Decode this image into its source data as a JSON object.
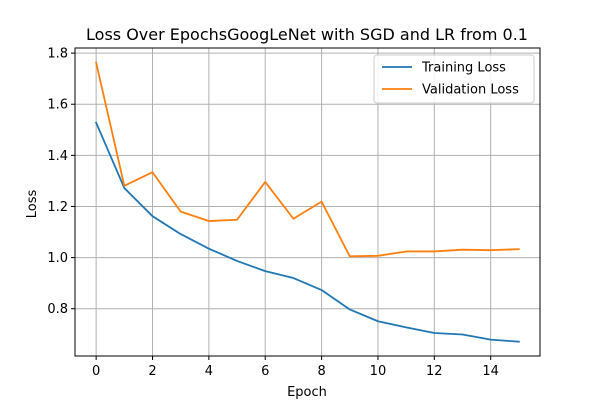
{
  "chart_data": {
    "type": "line",
    "title": "Loss Over EpochsGoogLeNet with SGD and LR from 0.1",
    "xlabel": "Epoch",
    "ylabel": "Loss",
    "x": [
      0,
      1,
      2,
      3,
      4,
      5,
      6,
      7,
      8,
      9,
      10,
      11,
      12,
      13,
      14,
      15
    ],
    "xlim": [
      -0.75,
      15.75
    ],
    "ylim": [
      0.615,
      1.82
    ],
    "xticks": [
      0,
      2,
      4,
      6,
      8,
      10,
      12,
      14
    ],
    "yticks": [
      0.8,
      1.0,
      1.2,
      1.4,
      1.6,
      1.8
    ],
    "xtick_labels": [
      "0",
      "2",
      "4",
      "6",
      "8",
      "10",
      "12",
      "14"
    ],
    "ytick_labels": [
      "0.8",
      "1.0",
      "1.2",
      "1.4",
      "1.6",
      "1.8"
    ],
    "grid": true,
    "legend_position": "upper right",
    "series": [
      {
        "name": "Training Loss",
        "color": "#1f77b4",
        "values": [
          1.528,
          1.272,
          1.162,
          1.092,
          1.035,
          0.987,
          0.947,
          0.92,
          0.873,
          0.797,
          0.751,
          0.727,
          0.705,
          0.699,
          0.679,
          0.671
        ]
      },
      {
        "name": "Validation Loss",
        "color": "#ff7f0e",
        "values": [
          1.763,
          1.281,
          1.334,
          1.18,
          1.143,
          1.148,
          1.296,
          1.152,
          1.219,
          1.005,
          1.007,
          1.024,
          1.024,
          1.031,
          1.029,
          1.033
        ]
      }
    ]
  }
}
